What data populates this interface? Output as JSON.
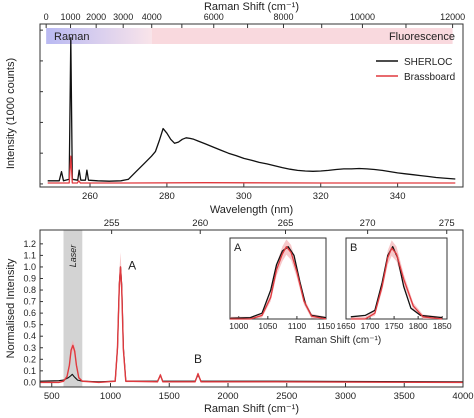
{
  "colors": {
    "sherloc": "#111111",
    "brassboard": "#e0393e",
    "brassboard_band": "#f4b1b3",
    "raman_band_start": "#b9b9f2",
    "raman_band_end": "#f9e4ea",
    "fluor_band": "#f9d9de",
    "laser_band": "#d3d3d3",
    "axis": "#333333"
  },
  "chart_data": [
    {
      "id": "top",
      "type": "line",
      "xlabel": "Wavelength (nm)",
      "ylabel": "Intensity (1000 counts)",
      "xlim": [
        247,
        357
      ],
      "ylim": [
        -1,
        52
      ],
      "x_ticks": [
        260,
        280,
        300,
        320,
        340
      ],
      "top_axis": {
        "label": "Raman Shift (cm⁻¹)",
        "ticks": [
          0,
          1000,
          2000,
          3000,
          4000,
          5000,
          6000,
          7000,
          8000,
          9000,
          10000,
          11000,
          12000
        ],
        "tick_labels": [
          "0",
          "1000",
          "2000",
          "3000",
          "4000",
          "6000",
          "8000",
          "10000",
          "12000"
        ],
        "labeled_ticks": [
          0,
          1000,
          2000,
          3000,
          4000,
          6000,
          8000,
          10000,
          12000
        ],
        "excitation_nm": 248.6
      },
      "bands": [
        {
          "label": "Raman",
          "from_shift": 0,
          "to_shift": 4000
        },
        {
          "label": "Fluorescence",
          "from_shift": 4000,
          "to_shift": 12000
        }
      ],
      "legend": {
        "position": "top-right",
        "entries": [
          "SHERLOC",
          "Brassboard"
        ]
      },
      "series": [
        {
          "name": "SHERLOC",
          "points": [
            [
              249,
              1.0
            ],
            [
              252,
              1.0
            ],
            [
              252.6,
              4.0
            ],
            [
              253.1,
              1.0
            ],
            [
              254.6,
              1.5
            ],
            [
              255.0,
              47.5
            ],
            [
              255.4,
              1.5
            ],
            [
              256.8,
              1.2
            ],
            [
              257.2,
              4.5
            ],
            [
              257.6,
              1.2
            ],
            [
              258.8,
              1.2
            ],
            [
              259.2,
              4.5
            ],
            [
              259.6,
              1.2
            ],
            [
              262,
              1.0
            ],
            [
              265,
              0.9
            ],
            [
              268,
              1.0
            ],
            [
              270,
              1.5
            ],
            [
              272,
              4
            ],
            [
              274,
              6.5
            ],
            [
              276,
              9
            ],
            [
              277,
              10.5
            ],
            [
              278,
              14
            ],
            [
              279,
              18
            ],
            [
              280,
              16.5
            ],
            [
              281,
              14.5
            ],
            [
              282,
              13.2
            ],
            [
              283,
              13.6
            ],
            [
              284,
              14.5
            ],
            [
              285,
              15
            ],
            [
              286,
              14.8
            ],
            [
              287,
              14.5
            ],
            [
              288,
              14
            ],
            [
              290,
              13
            ],
            [
              292,
              12
            ],
            [
              294,
              11
            ],
            [
              296,
              10
            ],
            [
              298,
              9.2
            ],
            [
              300,
              8.3
            ],
            [
              302,
              7.7
            ],
            [
              304,
              7
            ],
            [
              306,
              6.5
            ],
            [
              308,
              5.9
            ],
            [
              310,
              5.3
            ],
            [
              312,
              4.8
            ],
            [
              314,
              4.4
            ],
            [
              316,
              4.2
            ],
            [
              318,
              4.1
            ],
            [
              320,
              4.2
            ],
            [
              322,
              4.4
            ],
            [
              324,
              4.7
            ],
            [
              326,
              4.9
            ],
            [
              328,
              4.9
            ],
            [
              330,
              5
            ],
            [
              332,
              4.9
            ],
            [
              334,
              4.7
            ],
            [
              336,
              4.4
            ],
            [
              338,
              4
            ],
            [
              340,
              3.6
            ],
            [
              342,
              3.3
            ],
            [
              344,
              3
            ],
            [
              346,
              2.7
            ],
            [
              348,
              2.4
            ],
            [
              350,
              2.1
            ],
            [
              352,
              1.9
            ],
            [
              355,
              1.6
            ]
          ]
        },
        {
          "name": "Brassboard",
          "points": [
            [
              249,
              0.3
            ],
            [
              254.6,
              0.3
            ],
            [
              255,
              9
            ],
            [
              255.4,
              0.3
            ],
            [
              256.7,
              0.3
            ],
            [
              257.1,
              1.0
            ],
            [
              257.5,
              0.3
            ],
            [
              270,
              0.3
            ],
            [
              290,
              0.4
            ],
            [
              320,
              0.3
            ],
            [
              355,
              0.3
            ]
          ]
        }
      ]
    },
    {
      "id": "bottom",
      "type": "line",
      "xlabel": "Raman Shift (cm⁻¹)",
      "ylabel": "Normalised Intensity",
      "xlim": [
        400,
        4000
      ],
      "ylim": [
        -0.04,
        1.32
      ],
      "x_ticks": [
        500,
        1000,
        1500,
        2000,
        2500,
        3000,
        3500,
        4000
      ],
      "y_ticks": [
        0.0,
        0.1,
        0.2,
        0.3,
        0.4,
        0.5,
        0.6,
        0.7,
        0.8,
        0.9,
        1.0,
        1.1,
        1.2
      ],
      "y_tick_labels": [
        "0.0",
        "0.1",
        "0.2",
        "0.3",
        "0.4",
        "0.5",
        "0.6",
        "0.7",
        "0.8",
        "0.9",
        "1.0",
        "1.1",
        "1.2"
      ],
      "top_axis": {
        "ticks": [
          255,
          260,
          265,
          270,
          275
        ],
        "excitation_nm": 248.6
      },
      "laser_band": {
        "from": 600,
        "to": 760,
        "label": "Laser"
      },
      "annotations": [
        {
          "text": "A",
          "x": 1150,
          "y": 0.98
        },
        {
          "text": "B",
          "x": 1745,
          "y": 0.17
        }
      ],
      "series": [
        {
          "name": "SHERLOC",
          "points": [
            [
              400,
              0.01
            ],
            [
              560,
              0.015
            ],
            [
              600,
              0.02
            ],
            [
              640,
              0.04
            ],
            [
              660,
              0.055
            ],
            [
              675,
              0.07
            ],
            [
              690,
              0.05
            ],
            [
              705,
              0.035
            ],
            [
              720,
              0.02
            ],
            [
              760,
              0.01
            ],
            [
              900,
              0.005
            ],
            [
              1040,
              0.01
            ],
            [
              1060,
              0.3
            ],
            [
              1075,
              0.85
            ],
            [
              1085,
              1.0
            ],
            [
              1095,
              0.85
            ],
            [
              1110,
              0.3
            ],
            [
              1130,
              0.01
            ],
            [
              1400,
              0.01
            ],
            [
              1425,
              0.06
            ],
            [
              1445,
              0.01
            ],
            [
              1720,
              0.01
            ],
            [
              1745,
              0.065
            ],
            [
              1770,
              0.01
            ],
            [
              2400,
              0.01
            ],
            [
              4000,
              0.005
            ]
          ]
        },
        {
          "name": "Brassboard",
          "points": [
            [
              400,
              0.0
            ],
            [
              560,
              0.0
            ],
            [
              600,
              0.01
            ],
            [
              630,
              0.05
            ],
            [
              650,
              0.15
            ],
            [
              665,
              0.28
            ],
            [
              680,
              0.32
            ],
            [
              695,
              0.27
            ],
            [
              710,
              0.15
            ],
            [
              730,
              0.04
            ],
            [
              760,
              0.01
            ],
            [
              900,
              0.0
            ],
            [
              1040,
              0.01
            ],
            [
              1060,
              0.3
            ],
            [
              1075,
              0.84
            ],
            [
              1085,
              1.0
            ],
            [
              1095,
              0.82
            ],
            [
              1110,
              0.28
            ],
            [
              1130,
              0.01
            ],
            [
              1400,
              0.005
            ],
            [
              1425,
              0.065
            ],
            [
              1445,
              0.005
            ],
            [
              1720,
              0.005
            ],
            [
              1745,
              0.075
            ],
            [
              1770,
              0.005
            ],
            [
              2400,
              0.005
            ],
            [
              4000,
              0.0
            ]
          ]
        }
      ],
      "insets": [
        {
          "label": "A",
          "xlim": [
            985,
            1150
          ],
          "ylim": [
            0,
            1.12
          ],
          "x_ticks": [
            1000,
            1050,
            1100,
            1150
          ],
          "series": [
            {
              "name": "SHERLOC",
              "points": [
                [
                  985,
                  0.01
                ],
                [
                  1020,
                  0.02
                ],
                [
                  1040,
                  0.08
                ],
                [
                  1055,
                  0.4
                ],
                [
                  1065,
                  0.75
                ],
                [
                  1075,
                  0.94
                ],
                [
                  1085,
                  1.0
                ],
                [
                  1095,
                  0.88
                ],
                [
                  1105,
                  0.52
                ],
                [
                  1115,
                  0.2
                ],
                [
                  1125,
                  0.05
                ],
                [
                  1150,
                  0.02
                ]
              ]
            },
            {
              "name": "Brassboard",
              "points": [
                [
                  985,
                  0.0
                ],
                [
                  1020,
                  0.0
                ],
                [
                  1040,
                  0.05
                ],
                [
                  1055,
                  0.3
                ],
                [
                  1065,
                  0.68
                ],
                [
                  1075,
                  0.9
                ],
                [
                  1082,
                  1.0
                ],
                [
                  1090,
                  0.92
                ],
                [
                  1100,
                  0.65
                ],
                [
                  1112,
                  0.25
                ],
                [
                  1125,
                  0.04
                ],
                [
                  1150,
                  0.0
                ]
              ]
            }
          ]
        },
        {
          "label": "B",
          "xlim": [
            1650,
            1860
          ],
          "ylim": [
            0,
            1.12
          ],
          "x_ticks": [
            1650,
            1700,
            1750,
            1800,
            1850
          ],
          "series": [
            {
              "name": "SHERLOC",
              "points": [
                [
                  1660,
                  0.03
                ],
                [
                  1690,
                  0.05
                ],
                [
                  1710,
                  0.12
                ],
                [
                  1725,
                  0.5
                ],
                [
                  1737,
                  0.88
                ],
                [
                  1747,
                  1.0
                ],
                [
                  1757,
                  0.85
                ],
                [
                  1770,
                  0.45
                ],
                [
                  1785,
                  0.15
                ],
                [
                  1805,
                  0.05
                ],
                [
                  1850,
                  0.02
                ]
              ]
            },
            {
              "name": "Brassboard",
              "points": [
                [
                  1660,
                  0.0
                ],
                [
                  1690,
                  0.0
                ],
                [
                  1710,
                  0.08
                ],
                [
                  1725,
                  0.45
                ],
                [
                  1737,
                  0.85
                ],
                [
                  1745,
                  0.98
                ],
                [
                  1755,
                  0.9
                ],
                [
                  1770,
                  0.55
                ],
                [
                  1790,
                  0.18
                ],
                [
                  1810,
                  0.03
                ],
                [
                  1850,
                  0.0
                ]
              ]
            }
          ]
        }
      ]
    }
  ]
}
